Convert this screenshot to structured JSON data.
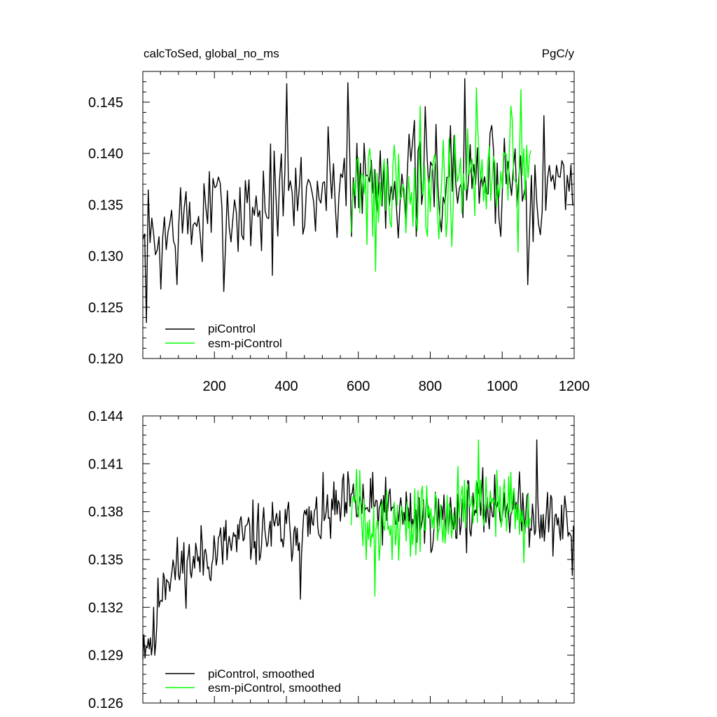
{
  "figure": {
    "title_left": "calcToSed, global_no_ms",
    "title_right": "PgC/y"
  },
  "colors": {
    "piControl": "#000000",
    "esm_piControl": "#00ff00",
    "axis": "#000000",
    "background": "#ffffff"
  },
  "chart_data": [
    {
      "type": "line",
      "panel": "top",
      "title": "calcToSed, global_no_ms",
      "units": "PgC/y",
      "xlabel": "",
      "ylabel": "",
      "xlim": [
        1,
        1200
      ],
      "ylim": [
        0.12,
        0.148
      ],
      "xticks": [
        200,
        400,
        600,
        800,
        1000,
        1200
      ],
      "xtick_labels": [
        "200",
        "400",
        "600",
        "800",
        "1000",
        "1200"
      ],
      "yticks": [
        0.12,
        0.125,
        0.13,
        0.135,
        0.14,
        0.145
      ],
      "ytick_labels": [
        "0.120",
        "0.125",
        "0.130",
        "0.135",
        "0.140",
        "0.145"
      ],
      "legend": [
        "piControl",
        "esm-piControl"
      ],
      "legend_location": "bottom-left",
      "series": [
        {
          "name": "piControl",
          "x_start": 1,
          "x_end": 1200,
          "step": 5,
          "anchors": [
            [
              1,
              0.13
            ],
            [
              60,
              0.132
            ],
            [
              200,
              0.134
            ],
            [
              400,
              0.1355
            ],
            [
              580,
              0.1375
            ],
            [
              800,
              0.1375
            ],
            [
              1000,
              0.138
            ],
            [
              1200,
              0.137
            ]
          ],
          "noise_sd": 0.003,
          "seed": 7,
          "extremes": [
            [
              10,
              0.1235
            ],
            [
              400,
              0.1468
            ],
            [
              570,
              0.1469
            ],
            [
              895,
              0.1473
            ],
            [
              1070,
              0.1272
            ]
          ]
        },
        {
          "name": "esm-piControl",
          "x_start": 580,
          "x_end": 1080,
          "step": 4,
          "anchors": [
            [
              580,
              0.1375
            ],
            [
              800,
              0.137
            ],
            [
              1000,
              0.138
            ],
            [
              1080,
              0.1375
            ]
          ],
          "noise_sd": 0.003,
          "seed": 21,
          "extremes": [
            [
              648,
              0.1285
            ],
            [
              930,
              0.1464
            ]
          ]
        }
      ]
    },
    {
      "type": "line",
      "panel": "bottom",
      "title": "",
      "xlabel": "",
      "ylabel": "",
      "xlim": [
        1,
        1200
      ],
      "ylim": [
        0.126,
        0.144
      ],
      "xticks": [
        200,
        400,
        600,
        800,
        1000,
        1200
      ],
      "yticks": [
        0.126,
        0.129,
        0.132,
        0.135,
        0.138,
        0.141,
        0.144
      ],
      "ytick_labels": [
        "0.126",
        "0.129",
        "0.132",
        "0.135",
        "0.138",
        "0.141",
        "0.144"
      ],
      "legend": [
        "piControl, smoothed",
        "esm-piControl, smoothed"
      ],
      "legend_location": "bottom-left",
      "series": [
        {
          "name": "piControl, smoothed",
          "x_start": 1,
          "x_end": 1200,
          "step": 3,
          "anchors": [
            [
              1,
              0.13
            ],
            [
              35,
              0.13
            ],
            [
              45,
              0.1325
            ],
            [
              60,
              0.134
            ],
            [
              150,
              0.135
            ],
            [
              300,
              0.1365
            ],
            [
              450,
              0.137
            ],
            [
              580,
              0.1385
            ],
            [
              800,
              0.1375
            ],
            [
              1000,
              0.1385
            ],
            [
              1200,
              0.137
            ]
          ],
          "noise_sd": 0.001,
          "seed": 11,
          "extremes": [
            [
              35,
              0.129
            ],
            [
              440,
              0.1325
            ],
            [
              570,
              0.1405
            ],
            [
              1095,
              0.1425
            ],
            [
              1195,
              0.134
            ]
          ]
        },
        {
          "name": "esm-piControl, smoothed",
          "x_start": 580,
          "x_end": 1080,
          "step": 3,
          "anchors": [
            [
              580,
              0.1385
            ],
            [
              700,
              0.137
            ],
            [
              900,
              0.1385
            ],
            [
              1080,
              0.1375
            ]
          ],
          "noise_sd": 0.0012,
          "seed": 33,
          "extremes": [
            [
              645,
              0.1327
            ],
            [
              935,
              0.1425
            ],
            [
              1060,
              0.1348
            ]
          ]
        }
      ]
    }
  ]
}
